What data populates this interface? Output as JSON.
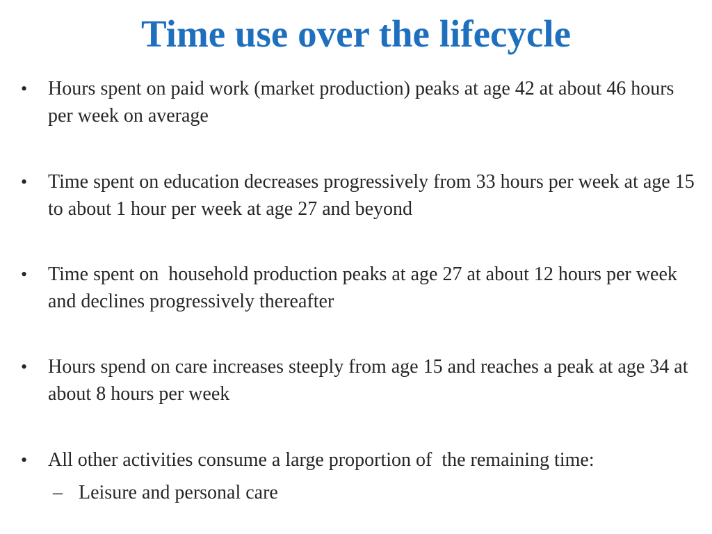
{
  "slide": {
    "title": "Time use over the lifecycle",
    "bullet_marker": "•",
    "sub_marker": "–",
    "bullets": [
      "Hours spent on paid work (market production) peaks at age 42 at about 46 hours per week on average",
      "Time spent on education decreases progressively from 33 hours per week at age 15 to about 1 hour per week at age 27 and beyond",
      "Time spent on  household production peaks at age 27 at about 12 hours per week and declines progressively thereafter",
      "Hours spend on care increases steeply from age 15 and reaches a peak at age 34 at about 8 hours per week",
      "All other activities consume a large proportion of  the remaining time:"
    ],
    "sub_bullets": [
      "Leisure and personal care"
    ]
  }
}
